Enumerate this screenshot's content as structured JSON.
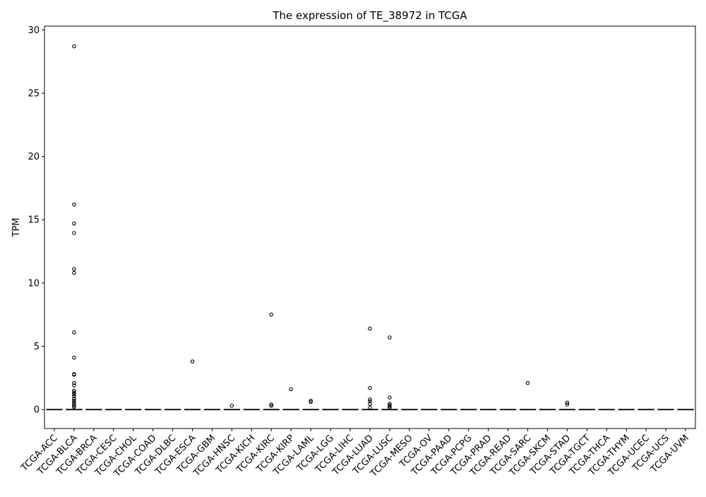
{
  "chart_data": {
    "type": "box",
    "title": "The expression of TE_38972 in TCGA",
    "xlabel": "",
    "ylabel": "TPM",
    "ylim": [
      -1.5,
      30.3
    ],
    "yticks": [
      0,
      5,
      10,
      15,
      20,
      25,
      30
    ],
    "grid": false,
    "legend": "none",
    "categories": [
      "TCGA-ACC",
      "TCGA-BLCA",
      "TCGA-BRCA",
      "TCGA-CESC",
      "TCGA-CHOL",
      "TCGA-COAD",
      "TCGA-DLBC",
      "TCGA-ESCA",
      "TCGA-GBM",
      "TCGA-HNSC",
      "TCGA-KICH",
      "TCGA-KIRC",
      "TCGA-KIRP",
      "TCGA-LAML",
      "TCGA-LGG",
      "TCGA-LIHC",
      "TCGA-LUAD",
      "TCGA-LUSC",
      "TCGA-MESO",
      "TCGA-OV",
      "TCGA-PAAD",
      "TCGA-PCPG",
      "TCGA-PRAD",
      "TCGA-READ",
      "TCGA-SARC",
      "TCGA-SKCM",
      "TCGA-STAD",
      "TCGA-TGCT",
      "TCGA-THCA",
      "TCGA-THYM",
      "TCGA-UCEC",
      "TCGA-UCS",
      "TCGA-UVM"
    ],
    "median": [
      0,
      0,
      0,
      0,
      0,
      0,
      0,
      0,
      0,
      0,
      0,
      0,
      0,
      0,
      0,
      0,
      0,
      0,
      0,
      0,
      0,
      0,
      0,
      0,
      0,
      0,
      0,
      0,
      0,
      0,
      0,
      0,
      0
    ],
    "q1": [
      0,
      0,
      0,
      0,
      0,
      0,
      0,
      0,
      0,
      0,
      0,
      0,
      0,
      0,
      0,
      0,
      0,
      0,
      0,
      0,
      0,
      0,
      0,
      0,
      0,
      0,
      0,
      0,
      0,
      0,
      0,
      0,
      0
    ],
    "q3": [
      0,
      0,
      0,
      0,
      0,
      0,
      0,
      0,
      0,
      0,
      0,
      0,
      0,
      0,
      0,
      0,
      0,
      0,
      0,
      0,
      0,
      0,
      0,
      0,
      0,
      0,
      0,
      0,
      0,
      0,
      0,
      0,
      0
    ],
    "outliers": [
      [],
      [
        28.7,
        16.2,
        14.7,
        13.95,
        11.1,
        10.8,
        6.1,
        4.1,
        2.8,
        2.75,
        2.1,
        1.9,
        1.5,
        1.35,
        1.2,
        1.05,
        0.85,
        0.7,
        0.55,
        0.4,
        0.3,
        0.2
      ],
      [],
      [],
      [],
      [],
      [],
      [
        3.8
      ],
      [],
      [
        0.3
      ],
      [],
      [
        7.5,
        0.4,
        0.3
      ],
      [
        1.6
      ],
      [
        0.7,
        0.6
      ],
      [],
      [],
      [
        6.4,
        1.7,
        0.8,
        0.65,
        0.45,
        0.15
      ],
      [
        5.7,
        0.95,
        0.45,
        0.35,
        0.25,
        0.15
      ],
      [],
      [],
      [],
      [],
      [],
      [],
      [
        2.1
      ],
      [],
      [
        0.55,
        0.4
      ],
      [],
      [],
      [],
      [],
      [],
      []
    ]
  }
}
